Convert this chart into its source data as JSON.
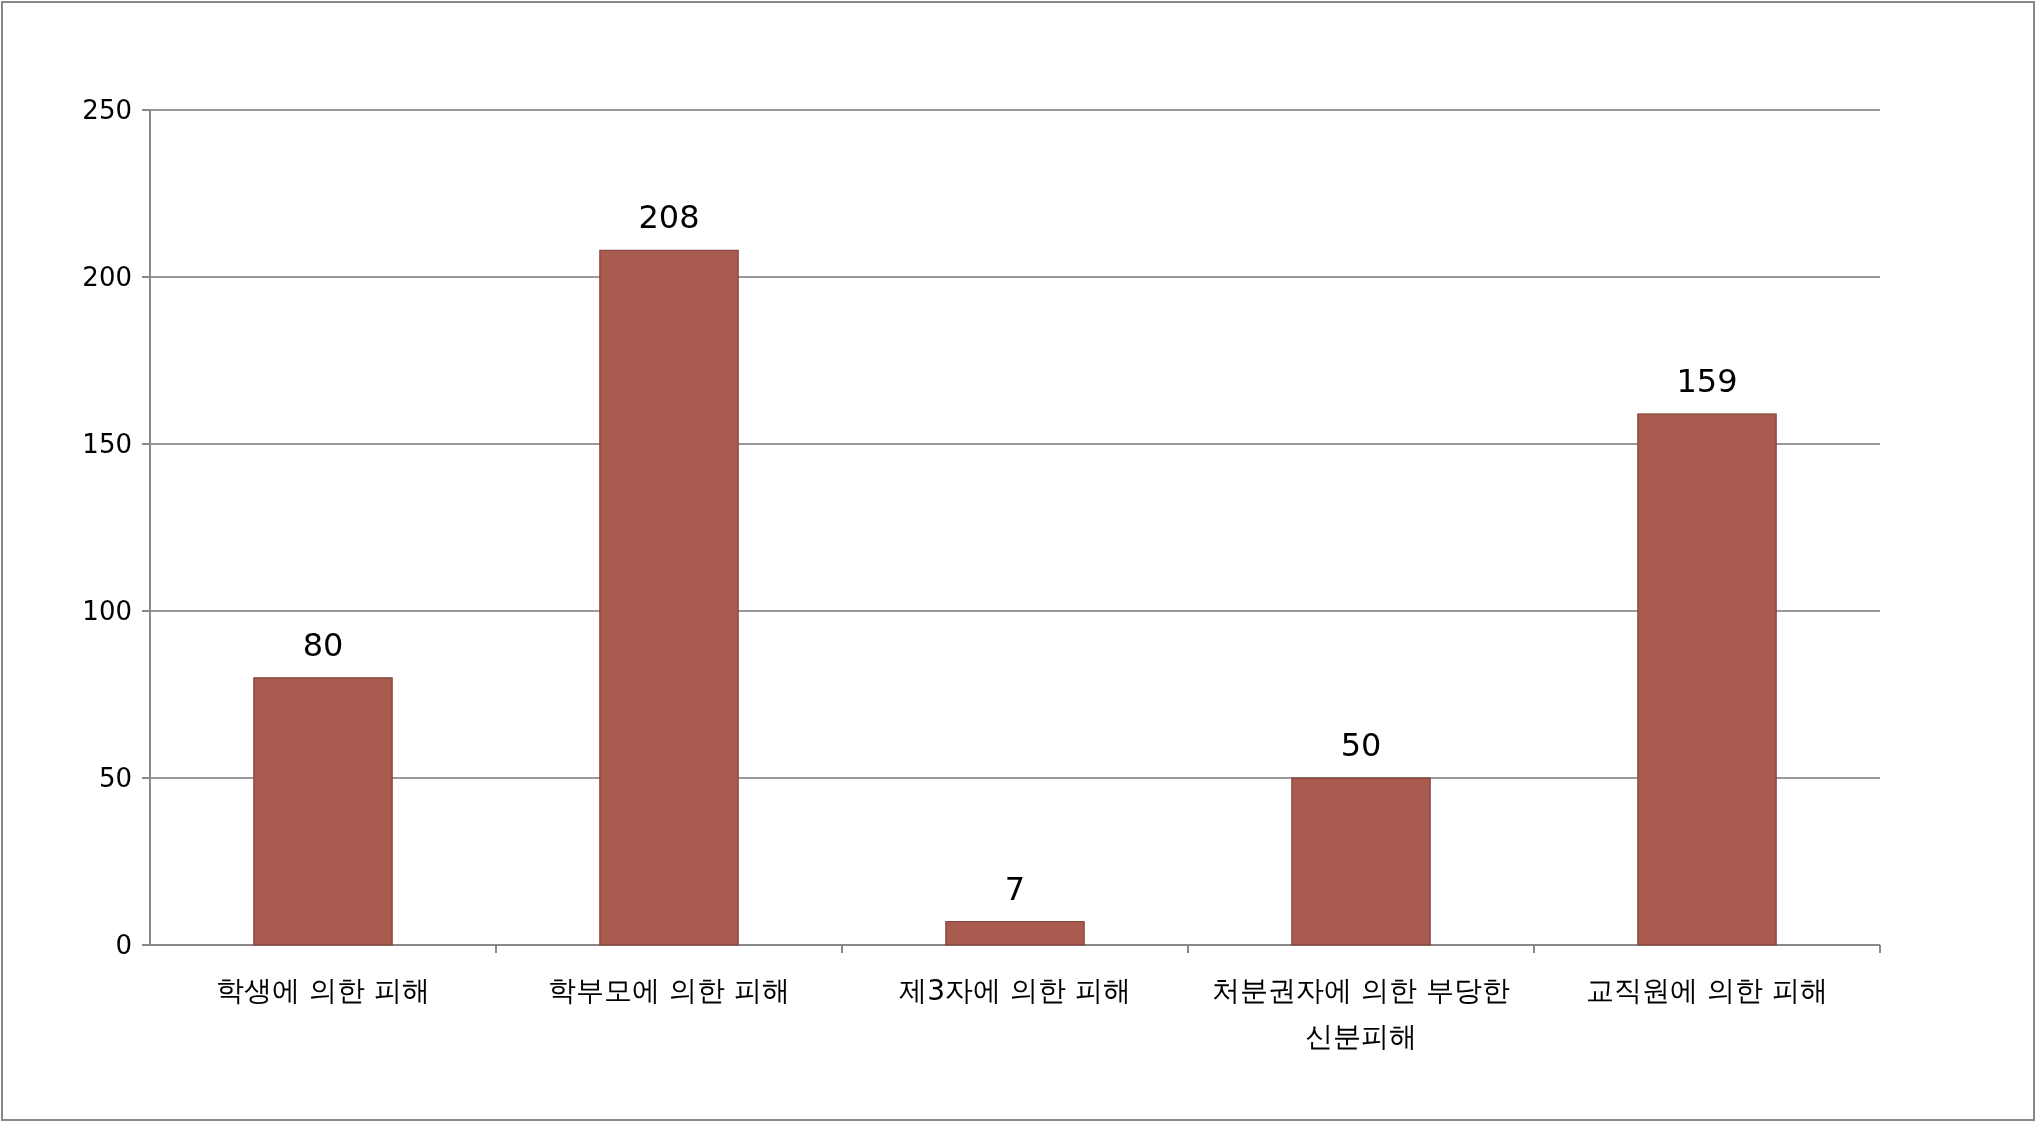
{
  "chart_data": {
    "type": "bar",
    "categories": [
      "학생에 의한 피해",
      "학부모에 의한 피해",
      "제3자에 의한 피해",
      "처분권자에 의한 부당한 신분피해",
      "교직원에 의한 피해"
    ],
    "values": [
      80,
      208,
      7,
      50,
      159
    ],
    "color": "#a95b4f",
    "ylim": [
      0,
      250
    ],
    "yticks": [
      0,
      50,
      100,
      150,
      200,
      250
    ],
    "grid": "y",
    "data_labels": true
  }
}
